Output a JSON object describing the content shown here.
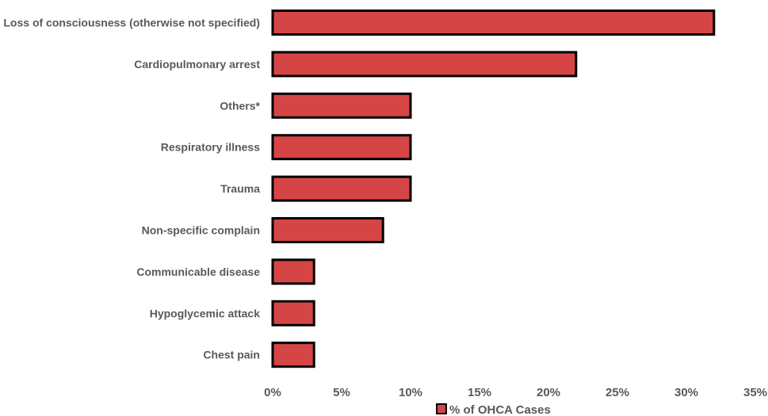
{
  "chart_data": {
    "type": "bar",
    "orientation": "horizontal",
    "categories": [
      "Loss of consciousness (otherwise not specified)",
      "Cardiopulmonary arrest",
      "Others*",
      "Respiratory illness",
      "Trauma",
      "Non-specific complain",
      "Communicable disease",
      "Hypoglycemic attack",
      "Chest pain"
    ],
    "series": [
      {
        "name": "% of OHCA Cases",
        "values": [
          32,
          22,
          10,
          10,
          10,
          8,
          3,
          3,
          3
        ],
        "color": "#d64545",
        "edge_color": "#000000"
      }
    ],
    "xlim": [
      0,
      35
    ],
    "x_ticks": [
      "0%",
      "5%",
      "10%",
      "15%",
      "20%",
      "25%",
      "30%",
      "35%"
    ],
    "x_tick_values": [
      0,
      5,
      10,
      15,
      20,
      25,
      30,
      35
    ],
    "grid": false,
    "legend_position": "bottom"
  }
}
